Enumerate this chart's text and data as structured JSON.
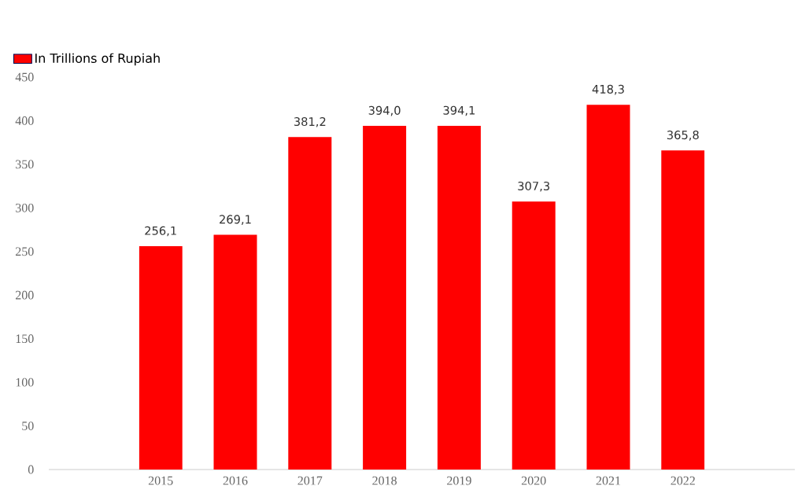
{
  "chart_data": {
    "type": "bar",
    "categories": [
      "2015",
      "2016",
      "2017",
      "2018",
      "2019",
      "2020",
      "2021",
      "2022"
    ],
    "series": [
      {
        "name": "In Trillions of Rupiah",
        "color": "#ff0000",
        "values": [
          256.1,
          269.1,
          381.2,
          394.0,
          394.1,
          307.3,
          418.3,
          365.8
        ],
        "value_labels": [
          "256,1",
          "269,1",
          "381,2",
          "394,0",
          "394,1",
          "307,3",
          "418,3",
          "365,8"
        ]
      }
    ],
    "ylim": [
      0,
      450
    ],
    "yticks": [
      0,
      50,
      100,
      150,
      200,
      250,
      300,
      350,
      400,
      450
    ],
    "grid": false,
    "legend": "top left"
  }
}
